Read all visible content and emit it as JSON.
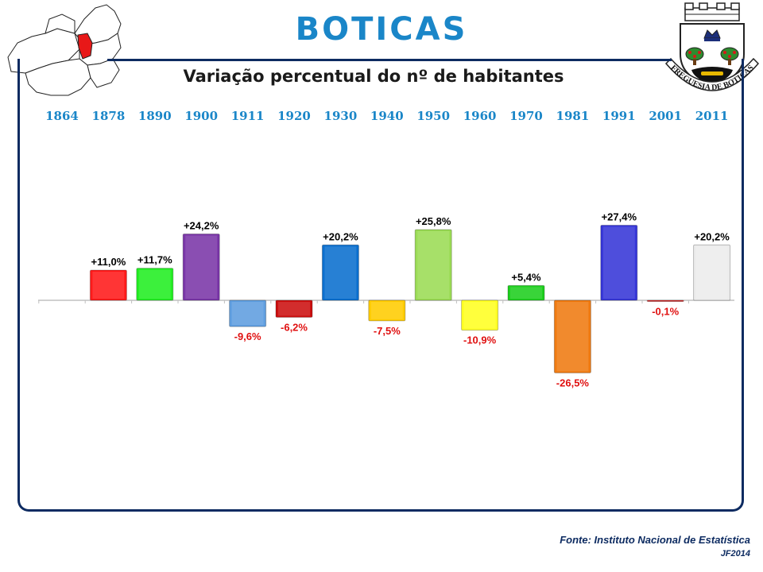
{
  "header": {
    "title": "BOTICAS",
    "subtitle": "Variação percentual do nº de habitantes"
  },
  "crest": {
    "label": "FREGUESIA DE BOTICAS"
  },
  "footer": {
    "source": "Fonte: Instituto Nacional de Estatística",
    "signature": "JF2014"
  },
  "chart_data": {
    "type": "bar",
    "title": "Variação percentual do nº de habitantes",
    "categories": [
      "1864",
      "1878",
      "1890",
      "1900",
      "1911",
      "1920",
      "1930",
      "1940",
      "1950",
      "1960",
      "1970",
      "1981",
      "1991",
      "2001",
      "2011"
    ],
    "values": [
      null,
      11.0,
      11.7,
      24.2,
      -9.6,
      -6.2,
      20.2,
      -7.5,
      25.8,
      -10.9,
      5.4,
      -26.5,
      27.4,
      -0.1,
      20.2
    ],
    "labels": [
      "",
      "+11,0%",
      "+11,7%",
      "+24,2%",
      "-9,6%",
      "-6,2%",
      "+20,2%",
      "-7,5%",
      "+25,8%",
      "-10,9%",
      "+5,4%",
      "-26,5%",
      "+27,4%",
      "-0,1%",
      "+20,2%"
    ],
    "colors": [
      "#ffffff",
      "#ff1a1a",
      "#22ee22",
      "#7a36a8",
      "#5f9ee0",
      "#cc1010",
      "#0a6fcf",
      "#ffcc00",
      "#9bdc55",
      "#ffff22",
      "#1ecf1e",
      "#f07a10",
      "#3636d8",
      "#dd2222",
      "#ececec"
    ],
    "label_colors": {
      "positive": "#000000",
      "negative": "#e01010"
    },
    "ylim": [
      -30,
      30
    ],
    "grid": false,
    "legend": "none"
  }
}
